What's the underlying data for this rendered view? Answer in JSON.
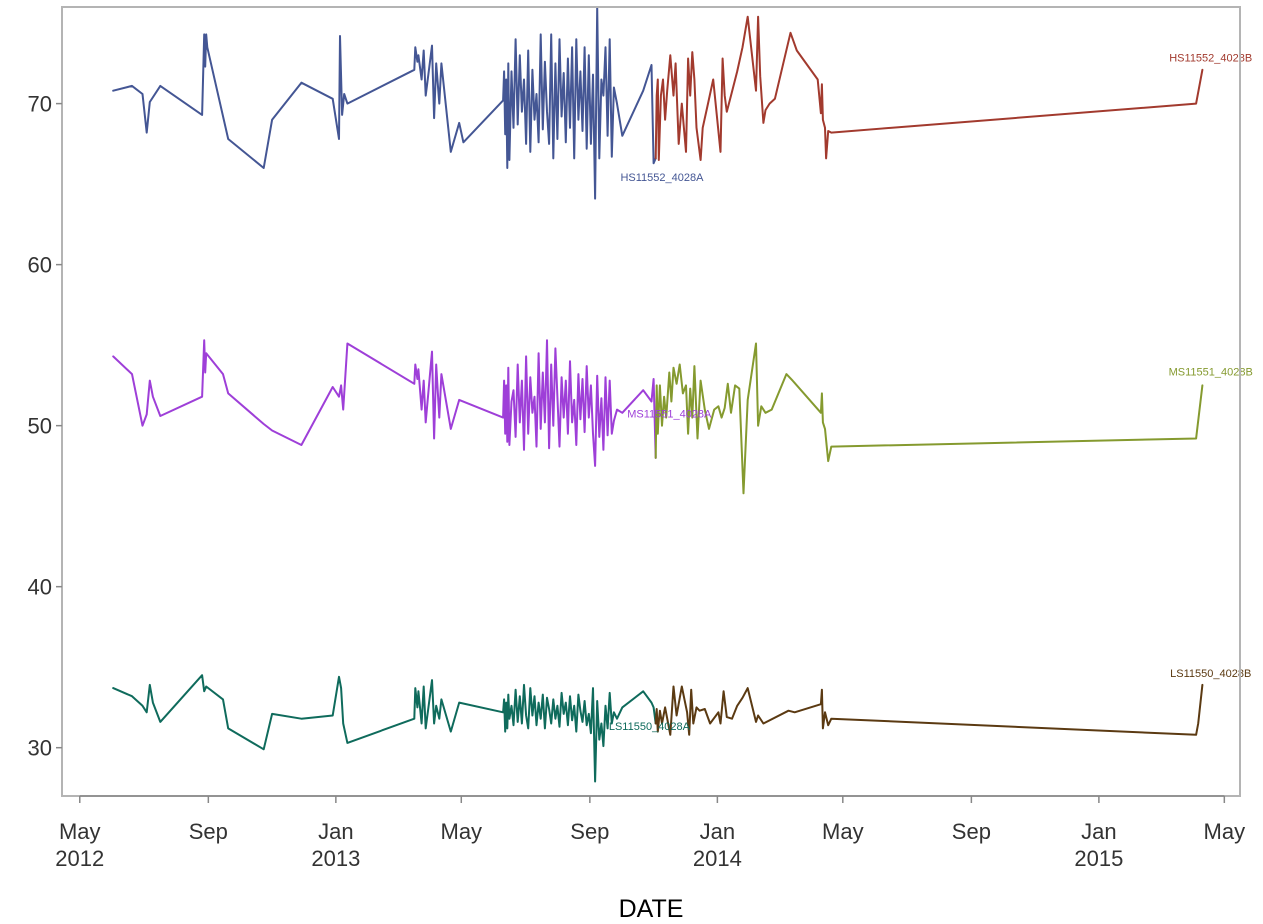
{
  "chart_data": {
    "type": "line",
    "xlabel": "DATE",
    "ylabel": "",
    "ylim": [
      27,
      76
    ],
    "xlim": [
      "2012-04-14",
      "2015-05-16"
    ],
    "grid": false,
    "y_ticks": [
      30,
      40,
      50,
      60,
      70
    ],
    "x_ticks": [
      {
        "date": "2012-05-01",
        "line1": "May",
        "line2": "2012"
      },
      {
        "date": "2012-09-01",
        "line1": "Sep",
        "line2": ""
      },
      {
        "date": "2013-01-01",
        "line1": "Jan",
        "line2": "2013"
      },
      {
        "date": "2013-05-01",
        "line1": "May",
        "line2": ""
      },
      {
        "date": "2013-09-01",
        "line1": "Sep",
        "line2": ""
      },
      {
        "date": "2014-01-01",
        "line1": "Jan",
        "line2": "2014"
      },
      {
        "date": "2014-05-01",
        "line1": "May",
        "line2": ""
      },
      {
        "date": "2014-09-01",
        "line1": "Sep",
        "line2": ""
      },
      {
        "date": "2015-01-01",
        "line1": "Jan",
        "line2": "2015"
      },
      {
        "date": "2015-05-01",
        "line1": "May",
        "line2": ""
      }
    ],
    "series": [
      {
        "name": "HS11552_4028A",
        "color": "#445694",
        "label_at": [
          "2013-11-09",
          65.2
        ],
        "x": [
          "2012-06-02",
          "2012-06-20",
          "2012-06-30",
          "2012-07-04",
          "2012-07-05",
          "2012-07-07",
          "2012-07-17",
          "2012-08-26",
          "2012-08-28",
          "2012-08-29",
          "2012-08-30",
          "2012-08-31",
          "2012-09-20",
          "2012-10-24",
          "2012-11-01",
          "2012-11-29",
          "2012-12-29",
          "2013-01-04",
          "2013-01-05",
          "2013-01-07",
          "2013-01-09",
          "2013-01-12",
          "2013-03-17",
          "2013-03-18",
          "2013-03-20",
          "2013-03-21",
          "2013-03-24",
          "2013-03-26",
          "2013-03-28",
          "2013-04-03",
          "2013-04-05",
          "2013-04-07",
          "2013-04-10",
          "2013-04-12",
          "2013-04-21",
          "2013-04-29",
          "2013-05-03",
          "2013-06-10",
          "2013-06-11",
          "2013-06-12",
          "2013-06-13",
          "2013-06-14",
          "2013-06-15",
          "2013-06-16",
          "2013-06-18",
          "2013-06-20",
          "2013-06-22",
          "2013-06-24",
          "2013-06-26",
          "2013-06-28",
          "2013-06-30",
          "2013-07-02",
          "2013-07-04",
          "2013-07-06",
          "2013-07-08",
          "2013-07-10",
          "2013-07-12",
          "2013-07-14",
          "2013-07-16",
          "2013-07-18",
          "2013-07-20",
          "2013-07-22",
          "2013-07-24",
          "2013-07-26",
          "2013-07-28",
          "2013-07-30",
          "2013-08-01",
          "2013-08-03",
          "2013-08-05",
          "2013-08-07",
          "2013-08-09",
          "2013-08-11",
          "2013-08-13",
          "2013-08-15",
          "2013-08-17",
          "2013-08-19",
          "2013-08-21",
          "2013-08-23",
          "2013-08-25",
          "2013-08-27",
          "2013-08-29",
          "2013-08-31",
          "2013-09-02",
          "2013-09-04",
          "2013-09-06",
          "2013-09-08",
          "2013-09-10",
          "2013-09-12",
          "2013-09-14",
          "2013-09-16",
          "2013-09-18",
          "2013-09-20",
          "2013-09-22",
          "2013-09-24",
          "2013-09-27",
          "2013-10-02",
          "2013-10-22",
          "2013-10-30",
          "2013-11-01",
          "2013-11-03"
        ],
        "y": [
          70.8,
          71.1,
          70.6,
          68.2,
          68.8,
          70.1,
          71.1,
          69.3,
          74.3,
          72.3,
          74.3,
          73.5,
          67.8,
          66,
          69,
          71.3,
          70.3,
          67.8,
          74.2,
          69.3,
          70.6,
          70,
          72.1,
          73.5,
          72.6,
          73,
          71.5,
          73.3,
          70.5,
          73.6,
          69.1,
          72.5,
          70,
          72.5,
          67,
          68.8,
          67.6,
          70.2,
          72,
          68.1,
          71.5,
          66,
          72.5,
          66.5,
          72,
          68.5,
          74,
          68.7,
          73,
          69.5,
          71.5,
          67.5,
          73.3,
          67,
          72.1,
          69,
          70.6,
          67.6,
          74.3,
          68.4,
          72.6,
          69.5,
          67.5,
          74.3,
          66.6,
          72.5,
          67.8,
          74,
          69.2,
          71.9,
          67.6,
          72.8,
          68.5,
          73.5,
          66.6,
          74,
          69,
          72,
          68.3,
          73.5,
          67.2,
          73,
          67.5,
          71.8,
          64.1,
          76,
          66.6,
          71.5,
          70.5,
          73.5,
          68,
          74,
          66.7,
          71,
          70,
          68,
          70.8,
          72.4,
          66.3,
          66.6
        ]
      },
      {
        "name": "HS11552_4028B",
        "color": "#a23a2e",
        "label_at": [
          "2015-04-18",
          72.6
        ],
        "x": [
          "2013-11-03",
          "2013-11-04",
          "2013-11-05",
          "2013-11-06",
          "2013-11-08",
          "2013-11-10",
          "2013-11-12",
          "2013-11-14",
          "2013-11-17",
          "2013-11-20",
          "2013-11-22",
          "2013-11-25",
          "2013-11-28",
          "2013-12-02",
          "2013-12-04",
          "2013-12-06",
          "2013-12-08",
          "2013-12-10",
          "2013-12-12",
          "2013-12-16",
          "2013-12-18",
          "2013-12-23",
          "2013-12-28",
          "2014-01-04",
          "2014-01-06",
          "2014-01-08",
          "2014-01-10",
          "2014-01-14",
          "2014-01-20",
          "2014-01-25",
          "2014-01-30",
          "2014-02-07",
          "2014-02-09",
          "2014-02-11",
          "2014-02-14",
          "2014-02-16",
          "2014-02-20",
          "2014-02-25",
          "2014-03-12",
          "2014-03-18",
          "2014-04-07",
          "2014-04-10",
          "2014-04-11",
          "2014-04-12",
          "2014-04-14",
          "2014-04-15",
          "2014-04-17",
          "2014-04-20",
          "2015-04-04",
          "2015-04-10"
        ],
        "y": [
          66.6,
          70.5,
          71.5,
          66.5,
          70.5,
          71.5,
          69,
          70.8,
          73,
          70.5,
          72.5,
          67.5,
          70,
          67,
          72.8,
          70.5,
          73.2,
          71.5,
          68.5,
          66.5,
          68.5,
          70,
          71.5,
          67,
          72.8,
          70.5,
          69.5,
          70.5,
          72,
          73.5,
          75.4,
          70.8,
          75.4,
          71.7,
          68.8,
          69.6,
          70,
          70.3,
          74.4,
          73.3,
          71.5,
          69.4,
          71.2,
          69,
          68.5,
          66.6,
          68.3,
          68.2,
          70,
          72.1
        ]
      },
      {
        "name": "MS11551_4028A",
        "color": "#9e3fd8",
        "label_at": [
          "2013-11-16",
          50.5
        ],
        "x": [
          "2012-06-02",
          "2012-06-20",
          "2012-06-30",
          "2012-07-04",
          "2012-07-07",
          "2012-07-10",
          "2012-07-17",
          "2012-08-26",
          "2012-08-28",
          "2012-08-29",
          "2012-08-30",
          "2012-09-15",
          "2012-09-20",
          "2012-10-24",
          "2012-11-01",
          "2012-11-29",
          "2012-12-29",
          "2013-01-04",
          "2013-01-06",
          "2013-01-08",
          "2013-01-12",
          "2013-03-17",
          "2013-03-18",
          "2013-03-20",
          "2013-03-21",
          "2013-03-24",
          "2013-03-26",
          "2013-03-28",
          "2013-04-03",
          "2013-04-05",
          "2013-04-07",
          "2013-04-10",
          "2013-04-12",
          "2013-04-21",
          "2013-04-29",
          "2013-06-10",
          "2013-06-11",
          "2013-06-12",
          "2013-06-13",
          "2013-06-14",
          "2013-06-15",
          "2013-06-16",
          "2013-06-18",
          "2013-06-20",
          "2013-06-22",
          "2013-06-24",
          "2013-06-26",
          "2013-06-28",
          "2013-06-30",
          "2013-07-02",
          "2013-07-04",
          "2013-07-06",
          "2013-07-08",
          "2013-07-10",
          "2013-07-12",
          "2013-07-14",
          "2013-07-16",
          "2013-07-18",
          "2013-07-20",
          "2013-07-22",
          "2013-07-24",
          "2013-07-26",
          "2013-07-28",
          "2013-07-30",
          "2013-08-01",
          "2013-08-03",
          "2013-08-05",
          "2013-08-07",
          "2013-08-09",
          "2013-08-11",
          "2013-08-13",
          "2013-08-15",
          "2013-08-17",
          "2013-08-19",
          "2013-08-21",
          "2013-08-23",
          "2013-08-25",
          "2013-08-27",
          "2013-08-29",
          "2013-08-31",
          "2013-09-02",
          "2013-09-04",
          "2013-09-06",
          "2013-09-08",
          "2013-09-10",
          "2013-09-12",
          "2013-09-14",
          "2013-09-16",
          "2013-09-18",
          "2013-09-20",
          "2013-09-22",
          "2013-09-24",
          "2013-09-27",
          "2013-10-02",
          "2013-10-22",
          "2013-10-30",
          "2013-11-01",
          "2013-11-03"
        ],
        "y": [
          54.3,
          53.2,
          50,
          50.7,
          52.8,
          51.8,
          50.6,
          51.8,
          55.3,
          53.3,
          54.5,
          53.2,
          52,
          50.1,
          49.7,
          48.8,
          52.4,
          51.8,
          52.5,
          51,
          55.1,
          52.6,
          53.8,
          52.9,
          53.5,
          51,
          52.8,
          50.2,
          54.6,
          49.2,
          53.8,
          50.5,
          53.2,
          49.8,
          51.6,
          50.5,
          52.8,
          49.5,
          52.5,
          49,
          53.6,
          48.8,
          51.5,
          52.2,
          49.3,
          53.8,
          50.2,
          52.8,
          48.5,
          54.3,
          49.5,
          53,
          50.8,
          51.8,
          48.7,
          54.5,
          49.8,
          53.3,
          50.2,
          55.3,
          48.6,
          53.8,
          50,
          54.8,
          51.8,
          48.7,
          53,
          50.5,
          52.8,
          49.5,
          54,
          50.2,
          51.6,
          48.8,
          53.2,
          50.4,
          52.9,
          49.6,
          53.7,
          50.5,
          52.5,
          49.5,
          47.5,
          53.1,
          49.3,
          51.7,
          48.5,
          53,
          49.4,
          52.8,
          49.5,
          50.3,
          51,
          50.8,
          52.2,
          51.5,
          52.9,
          48
        ]
      },
      {
        "name": "MS11551_4028B",
        "color": "#859a2f",
        "label_at": [
          "2015-04-18",
          53.1
        ],
        "x": [
          "2013-11-03",
          "2013-11-04",
          "2013-11-05",
          "2013-11-07",
          "2013-11-09",
          "2013-11-11",
          "2013-11-13",
          "2013-11-16",
          "2013-11-18",
          "2013-11-20",
          "2013-11-23",
          "2013-11-26",
          "2013-11-29",
          "2013-12-02",
          "2013-12-04",
          "2013-12-06",
          "2013-12-08",
          "2013-12-10",
          "2013-12-13",
          "2013-12-16",
          "2013-12-20",
          "2013-12-24",
          "2013-12-29",
          "2014-01-02",
          "2014-01-05",
          "2014-01-08",
          "2014-01-11",
          "2014-01-14",
          "2014-01-18",
          "2014-01-22",
          "2014-01-26",
          "2014-01-30",
          "2014-02-07",
          "2014-02-09",
          "2014-02-12",
          "2014-02-16",
          "2014-02-22",
          "2014-03-08",
          "2014-03-14",
          "2014-04-10",
          "2014-04-11",
          "2014-04-12",
          "2014-04-14",
          "2014-04-17",
          "2014-04-20",
          "2015-04-04",
          "2015-04-10"
        ],
        "y": [
          48,
          52.5,
          49.5,
          52.5,
          50,
          51.8,
          50.5,
          53.3,
          51.5,
          53.6,
          52.6,
          53.8,
          52,
          52.5,
          49.5,
          52.3,
          50.5,
          53.7,
          49.2,
          52.8,
          51,
          49.8,
          51,
          51.2,
          50.5,
          51.1,
          52.6,
          50.8,
          52.5,
          52.3,
          45.8,
          51.6,
          55.1,
          50,
          51.2,
          50.8,
          51,
          53.2,
          52.8,
          50.8,
          52,
          50.2,
          49.8,
          47.8,
          48.7,
          49.2,
          52.5
        ]
      },
      {
        "name": "LS11550_4028A",
        "color": "#0f6b5c",
        "label_at": [
          "2013-10-28",
          31.1
        ],
        "x": [
          "2012-06-02",
          "2012-06-20",
          "2012-06-30",
          "2012-07-04",
          "2012-07-07",
          "2012-07-10",
          "2012-07-17",
          "2012-08-26",
          "2012-08-28",
          "2012-08-30",
          "2012-09-15",
          "2012-09-20",
          "2012-10-24",
          "2012-11-01",
          "2012-11-29",
          "2012-12-29",
          "2013-01-04",
          "2013-01-06",
          "2013-01-08",
          "2013-01-12",
          "2013-03-17",
          "2013-03-18",
          "2013-03-20",
          "2013-03-21",
          "2013-03-24",
          "2013-03-26",
          "2013-03-28",
          "2013-04-03",
          "2013-04-05",
          "2013-04-07",
          "2013-04-10",
          "2013-04-12",
          "2013-04-21",
          "2013-04-29",
          "2013-06-10",
          "2013-06-11",
          "2013-06-12",
          "2013-06-13",
          "2013-06-14",
          "2013-06-15",
          "2013-06-16",
          "2013-06-18",
          "2013-06-20",
          "2013-06-22",
          "2013-06-24",
          "2013-06-26",
          "2013-06-28",
          "2013-06-30",
          "2013-07-02",
          "2013-07-04",
          "2013-07-06",
          "2013-07-08",
          "2013-07-10",
          "2013-07-12",
          "2013-07-14",
          "2013-07-16",
          "2013-07-18",
          "2013-07-20",
          "2013-07-22",
          "2013-07-24",
          "2013-07-26",
          "2013-07-28",
          "2013-07-30",
          "2013-08-01",
          "2013-08-03",
          "2013-08-05",
          "2013-08-07",
          "2013-08-09",
          "2013-08-11",
          "2013-08-13",
          "2013-08-15",
          "2013-08-17",
          "2013-08-19",
          "2013-08-21",
          "2013-08-23",
          "2013-08-25",
          "2013-08-27",
          "2013-08-29",
          "2013-08-31",
          "2013-09-02",
          "2013-09-04",
          "2013-09-06",
          "2013-09-08",
          "2013-09-10",
          "2013-09-12",
          "2013-09-14",
          "2013-09-16",
          "2013-09-18",
          "2013-09-20",
          "2013-09-22",
          "2013-09-24",
          "2013-09-27",
          "2013-10-02",
          "2013-10-22",
          "2013-10-30",
          "2013-11-01",
          "2013-11-03"
        ],
        "y": [
          33.7,
          33.2,
          32.6,
          32.2,
          33.9,
          32.8,
          31.6,
          34.5,
          33.5,
          33.8,
          33,
          31.2,
          29.9,
          32.1,
          31.8,
          32,
          34.4,
          33.7,
          31.5,
          30.3,
          31.8,
          33.7,
          32.5,
          33.5,
          31.5,
          33.8,
          31.2,
          34.2,
          31.5,
          32.6,
          31.8,
          33,
          31,
          32.8,
          32.2,
          33,
          31,
          32.8,
          31.2,
          33.3,
          31.8,
          32.6,
          31.4,
          33.6,
          31.6,
          33.2,
          31.5,
          33.9,
          32,
          31.2,
          33.7,
          32,
          33.2,
          31.4,
          32.8,
          31.8,
          33.3,
          31.2,
          33.1,
          32.4,
          31.5,
          33,
          31.8,
          32.6,
          31.3,
          33.4,
          32.1,
          32.8,
          31.4,
          33.2,
          31.7,
          32.6,
          31,
          33.3,
          32.3,
          31.6,
          32.9,
          31.4,
          32.1,
          30.9,
          33.7,
          27.9,
          32.9,
          30.5,
          31.5,
          30.1,
          32.6,
          31.2,
          33.4,
          31.5,
          32.2,
          31.8,
          32.5,
          33.5,
          32.8,
          32.5,
          31.5
        ]
      },
      {
        "name": "LS11550_4028B",
        "color": "#5b3a12",
        "label_at": [
          "2015-04-18",
          34.4
        ],
        "x": [
          "2013-11-03",
          "2013-11-04",
          "2013-11-05",
          "2013-11-07",
          "2013-11-09",
          "2013-11-12",
          "2013-11-17",
          "2013-11-20",
          "2013-11-23",
          "2013-11-28",
          "2013-12-03",
          "2013-12-05",
          "2013-12-07",
          "2013-12-09",
          "2013-12-12",
          "2013-12-15",
          "2013-12-20",
          "2013-12-25",
          "2014-01-02",
          "2014-01-04",
          "2014-01-07",
          "2014-01-10",
          "2014-01-15",
          "2014-01-20",
          "2014-01-25",
          "2014-01-30",
          "2014-02-07",
          "2014-02-09",
          "2014-02-14",
          "2014-03-10",
          "2014-03-16",
          "2014-04-10",
          "2014-04-11",
          "2014-04-12",
          "2014-04-14",
          "2014-04-17",
          "2014-04-20",
          "2015-04-04",
          "2015-04-06",
          "2015-04-10"
        ],
        "y": [
          31.5,
          32.4,
          31,
          32.3,
          31.5,
          32.5,
          30.8,
          33.8,
          32,
          33.8,
          32.2,
          30.8,
          33.6,
          31.5,
          32.5,
          32.3,
          32.4,
          31.5,
          32.2,
          31.5,
          33.5,
          31.9,
          31.8,
          32.6,
          33.1,
          33.7,
          31.6,
          32,
          31.5,
          32.3,
          32.2,
          32.7,
          33.6,
          31.2,
          32.2,
          31.4,
          31.8,
          30.8,
          31.5,
          33.9
        ]
      }
    ]
  }
}
